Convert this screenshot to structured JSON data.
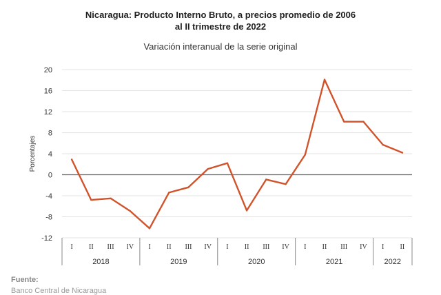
{
  "chart_data": {
    "type": "line",
    "title_line1": "Nicaragua: Producto Interno Bruto, a precios promedio de 2006",
    "title_line2": "al II trimestre de 2022",
    "subtitle": "Variación interanual de la serie original",
    "ylabel": "Porcentajes",
    "ylim": [
      -12,
      20
    ],
    "yticks": [
      20,
      16,
      12,
      8,
      4,
      0,
      -4,
      -8,
      -12
    ],
    "ytick_labels": [
      "20",
      "16",
      "12",
      "8",
      "4",
      "0",
      "-4",
      "-8",
      "-12"
    ],
    "grid": true,
    "quarters": [
      "I",
      "II",
      "III",
      "IV",
      "I",
      "II",
      "III",
      "IV",
      "I",
      "II",
      "III",
      "IV",
      "I",
      "II",
      "III",
      "IV",
      "I",
      "II"
    ],
    "years": [
      {
        "label": "2018",
        "count": 4
      },
      {
        "label": "2019",
        "count": 4
      },
      {
        "label": "2020",
        "count": 4
      },
      {
        "label": "2021",
        "count": 4
      },
      {
        "label": "2022",
        "count": 2
      }
    ],
    "series": [
      {
        "values": [
          2.9,
          -4.8,
          -4.5,
          -6.9,
          -10.2,
          -3.4,
          -2.4,
          1.1,
          2.2,
          -6.8,
          -0.9,
          -1.8,
          3.8,
          18.1,
          10.1,
          10.1,
          5.7,
          4.2
        ],
        "color": "#d0532b"
      }
    ]
  },
  "footer": {
    "source_label": "Fuente:",
    "source_text": "Banco Central de Nicaragua"
  }
}
